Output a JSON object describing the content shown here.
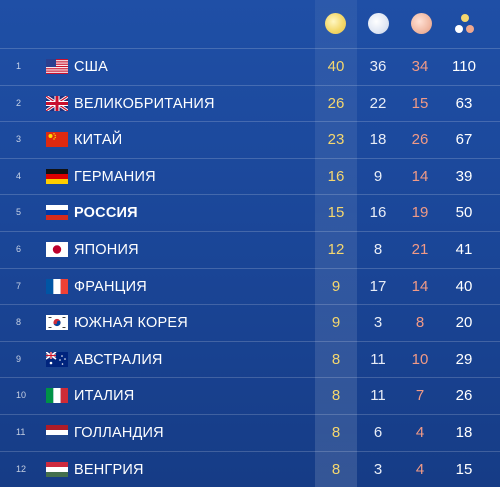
{
  "header": {
    "icons": [
      "gold-medal-icon",
      "silver-medal-icon",
      "bronze-medal-icon",
      "total-medals-icon"
    ]
  },
  "colors": {
    "gold": "#f5d76e",
    "silver": "#e8edf7",
    "bronze": "#f19a86",
    "background": "#1a4596"
  },
  "rows": [
    {
      "rank": "1",
      "flag": "usa-flag-icon",
      "country": "США",
      "gold": "40",
      "silver": "36",
      "bronze": "34",
      "total": "110"
    },
    {
      "rank": "2",
      "flag": "uk-flag-icon",
      "country": "ВЕЛИКОБРИТАНИЯ",
      "gold": "26",
      "silver": "22",
      "bronze": "15",
      "total": "63"
    },
    {
      "rank": "3",
      "flag": "china-flag-icon",
      "country": "КИТАЙ",
      "gold": "23",
      "silver": "18",
      "bronze": "26",
      "total": "67"
    },
    {
      "rank": "4",
      "flag": "germany-flag-icon",
      "country": "ГЕРМАНИЯ",
      "gold": "16",
      "silver": "9",
      "bronze": "14",
      "total": "39"
    },
    {
      "rank": "5",
      "flag": "russia-flag-icon",
      "country": "РОССИЯ",
      "gold": "15",
      "silver": "16",
      "bronze": "19",
      "total": "50"
    },
    {
      "rank": "6",
      "flag": "japan-flag-icon",
      "country": "ЯПОНИЯ",
      "gold": "12",
      "silver": "8",
      "bronze": "21",
      "total": "41"
    },
    {
      "rank": "7",
      "flag": "france-flag-icon",
      "country": "ФРАНЦИЯ",
      "gold": "9",
      "silver": "17",
      "bronze": "14",
      "total": "40"
    },
    {
      "rank": "8",
      "flag": "south-korea-flag-icon",
      "country": "ЮЖНАЯ КОРЕЯ",
      "gold": "9",
      "silver": "3",
      "bronze": "8",
      "total": "20"
    },
    {
      "rank": "9",
      "flag": "australia-flag-icon",
      "country": "АВСТРАЛИЯ",
      "gold": "8",
      "silver": "11",
      "bronze": "10",
      "total": "29"
    },
    {
      "rank": "10",
      "flag": "italy-flag-icon",
      "country": "ИТАЛИЯ",
      "gold": "8",
      "silver": "11",
      "bronze": "7",
      "total": "26"
    },
    {
      "rank": "11",
      "flag": "netherlands-flag-icon",
      "country": "ГОЛЛАНДИЯ",
      "gold": "8",
      "silver": "6",
      "bronze": "4",
      "total": "18"
    },
    {
      "rank": "12",
      "flag": "hungary-flag-icon",
      "country": "ВЕНГРИЯ",
      "gold": "8",
      "silver": "3",
      "bronze": "4",
      "total": "15"
    }
  ]
}
